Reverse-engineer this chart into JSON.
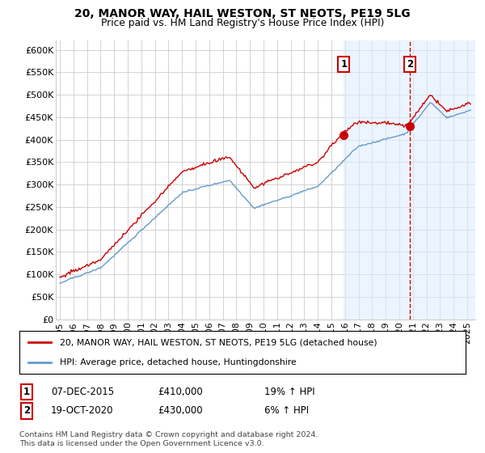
{
  "title": "20, MANOR WAY, HAIL WESTON, ST NEOTS, PE19 5LG",
  "subtitle": "Price paid vs. HM Land Registry's House Price Index (HPI)",
  "ylim": [
    0,
    620000
  ],
  "yticks": [
    0,
    50000,
    100000,
    150000,
    200000,
    250000,
    300000,
    350000,
    400000,
    450000,
    500000,
    550000,
    600000
  ],
  "ytick_labels": [
    "£0",
    "£50K",
    "£100K",
    "£150K",
    "£200K",
    "£250K",
    "£300K",
    "£350K",
    "£400K",
    "£450K",
    "£500K",
    "£550K",
    "£600K"
  ],
  "xlim_start": 1994.7,
  "xlim_end": 2025.6,
  "xtick_years": [
    1995,
    1996,
    1997,
    1998,
    1999,
    2000,
    2001,
    2002,
    2003,
    2004,
    2005,
    2006,
    2007,
    2008,
    2009,
    2010,
    2011,
    2012,
    2013,
    2014,
    2015,
    2016,
    2017,
    2018,
    2019,
    2020,
    2021,
    2022,
    2023,
    2024,
    2025
  ],
  "transaction1_x": 2015.92,
  "transaction1_y": 410000,
  "transaction2_x": 2020.79,
  "transaction2_y": 430000,
  "transaction1_date": "07-DEC-2015",
  "transaction1_price": "£410,000",
  "transaction1_hpi": "19% ↑ HPI",
  "transaction2_date": "19-OCT-2020",
  "transaction2_price": "£430,000",
  "transaction2_hpi": "6% ↑ HPI",
  "legend_line1": "20, MANOR WAY, HAIL WESTON, ST NEOTS, PE19 5LG (detached house)",
  "legend_line2": "HPI: Average price, detached house, Huntingdonshire",
  "footer": "Contains HM Land Registry data © Crown copyright and database right 2024.\nThis data is licensed under the Open Government Licence v3.0.",
  "line_color_red": "#cc0000",
  "line_color_blue": "#6699cc",
  "shaded_color": "#ddeeff",
  "background_color": "#ffffff",
  "grid_color": "#cccccc",
  "transaction_box_color": "#cc0000"
}
